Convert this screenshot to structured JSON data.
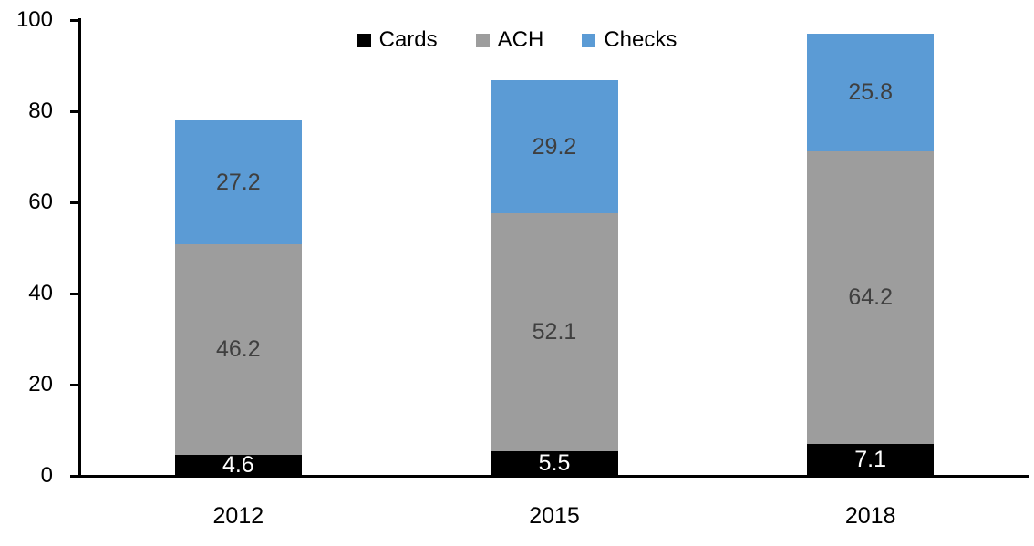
{
  "chart_data": {
    "type": "bar",
    "stacked": true,
    "title": "",
    "xlabel": "",
    "ylabel": "",
    "categories": [
      "2012",
      "2015",
      "2018"
    ],
    "series": [
      {
        "name": "Cards",
        "values": [
          4.6,
          5.5,
          7.1
        ],
        "color": "#000000",
        "label_color": "#ffffff"
      },
      {
        "name": "ACH",
        "values": [
          46.2,
          52.1,
          64.2
        ],
        "color": "#9d9d9d",
        "label_color": "#3f3f3f"
      },
      {
        "name": "Checks",
        "values": [
          27.2,
          29.2,
          25.8
        ],
        "color": "#5b9bd5",
        "label_color": "#3f3f3f"
      }
    ],
    "ylim": [
      0,
      100
    ],
    "yticks": [
      0,
      20,
      40,
      60,
      80,
      100
    ],
    "grid": false,
    "legend_position": "top-center",
    "axis_color": "#000000"
  }
}
